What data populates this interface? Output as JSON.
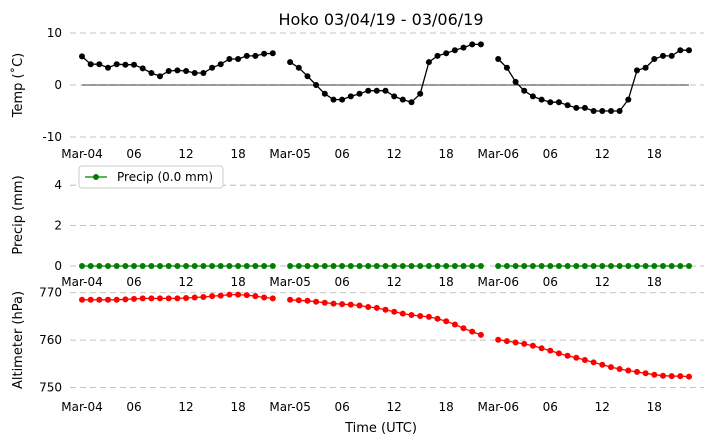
{
  "chart_data": [
    {
      "type": "line",
      "title": "Hoko 03/04/19 - 03/06/19",
      "ylabel": "Temp (˚C)",
      "ylim": [
        -10,
        10
      ],
      "yticks": [
        "-10",
        "0",
        "10"
      ],
      "xlim": [
        0,
        59
      ],
      "xtick_labels": [
        "Mar-04",
        "06",
        "12",
        "18",
        "Mar-05",
        "06",
        "12",
        "18",
        "Mar-06",
        "06",
        "12",
        "18"
      ],
      "zero_line": true,
      "grid": "horizontal dashed",
      "series": [
        {
          "color": "#000000",
          "marker": "circle",
          "values": [
            5.5,
            4.0,
            4.0,
            3.3,
            4.0,
            3.9,
            3.9,
            3.2,
            2.3,
            1.7,
            2.7,
            2.8,
            2.7,
            2.3,
            2.3,
            3.3,
            4.0,
            5.0,
            5.0,
            5.6,
            5.6,
            6.0,
            6.1,
            null,
            4.4,
            3.3,
            1.7,
            0.0,
            -1.7,
            -2.8,
            -2.8,
            -2.2,
            -1.7,
            -1.1,
            -1.1,
            -1.1,
            -2.2,
            -2.8,
            -3.3,
            -1.7,
            4.4,
            5.6,
            6.1,
            6.7,
            7.2,
            7.8,
            7.8,
            null,
            5.0,
            3.3,
            0.6,
            -1.1,
            -2.2,
            -2.8,
            -3.3,
            -3.3,
            -3.9,
            -4.4,
            -4.4,
            -5.0,
            -5.0,
            -5.0,
            -5.0,
            -2.8,
            2.8,
            3.3,
            5.0,
            5.6,
            5.6,
            6.7,
            6.7
          ]
        }
      ]
    },
    {
      "type": "line",
      "ylabel": "Precip (mm)",
      "ylim": [
        0,
        5
      ],
      "yticks": [
        "0",
        "2",
        "4"
      ],
      "xtick_labels": [
        "Mar-04",
        "06",
        "12",
        "18",
        "Mar-05",
        "06",
        "12",
        "18",
        "Mar-06",
        "06",
        "12",
        "18"
      ],
      "legend": {
        "placement": "top-left",
        "label": "Precip (0.0 mm)"
      },
      "grid": "horizontal dashed",
      "series": [
        {
          "name": "Precip (0.0 mm)",
          "color": "#008000",
          "marker": "circle",
          "values": [
            0,
            0,
            0,
            0,
            0,
            0,
            0,
            0,
            0,
            0,
            0,
            0,
            0,
            0,
            0,
            0,
            0,
            0,
            0,
            0,
            0,
            0,
            0,
            null,
            0,
            0,
            0,
            0,
            0,
            0,
            0,
            0,
            0,
            0,
            0,
            0,
            0,
            0,
            0,
            0,
            0,
            0,
            0,
            0,
            0,
            0,
            0,
            null,
            0,
            0,
            0,
            0,
            0,
            0,
            0,
            0,
            0,
            0,
            0,
            0,
            0,
            0,
            0,
            0,
            0,
            0,
            0,
            0,
            0,
            0,
            0
          ]
        }
      ]
    },
    {
      "type": "line",
      "ylabel": "Altimeter (hPa)",
      "xlabel": "Time (UTC)",
      "ylim": [
        748,
        771
      ],
      "yticks": [
        "750",
        "760",
        "770"
      ],
      "xtick_labels": [
        "Mar-04",
        "06",
        "12",
        "18",
        "Mar-05",
        "06",
        "12",
        "18",
        "Mar-06",
        "06",
        "12",
        "18"
      ],
      "grid": "horizontal dashed",
      "series": [
        {
          "color": "#ff0000",
          "marker": "circle",
          "values": [
            768.5,
            768.5,
            768.5,
            768.5,
            768.5,
            768.6,
            768.7,
            768.8,
            768.8,
            768.8,
            768.8,
            768.8,
            768.9,
            769.0,
            769.1,
            769.3,
            769.4,
            769.6,
            769.6,
            769.5,
            769.3,
            769.0,
            768.8,
            null,
            768.5,
            768.4,
            768.3,
            768.1,
            767.9,
            767.7,
            767.6,
            767.5,
            767.3,
            767.0,
            766.8,
            766.4,
            766.0,
            765.6,
            765.3,
            765.1,
            764.9,
            764.5,
            764.0,
            763.3,
            762.5,
            761.8,
            761.1,
            null,
            760.1,
            759.8,
            759.5,
            759.2,
            758.8,
            758.3,
            757.8,
            757.2,
            756.7,
            756.3,
            755.8,
            755.3,
            754.8,
            754.3,
            753.9,
            753.6,
            753.3,
            753.0,
            752.7,
            752.5,
            752.4,
            752.4,
            752.3
          ]
        }
      ]
    }
  ]
}
